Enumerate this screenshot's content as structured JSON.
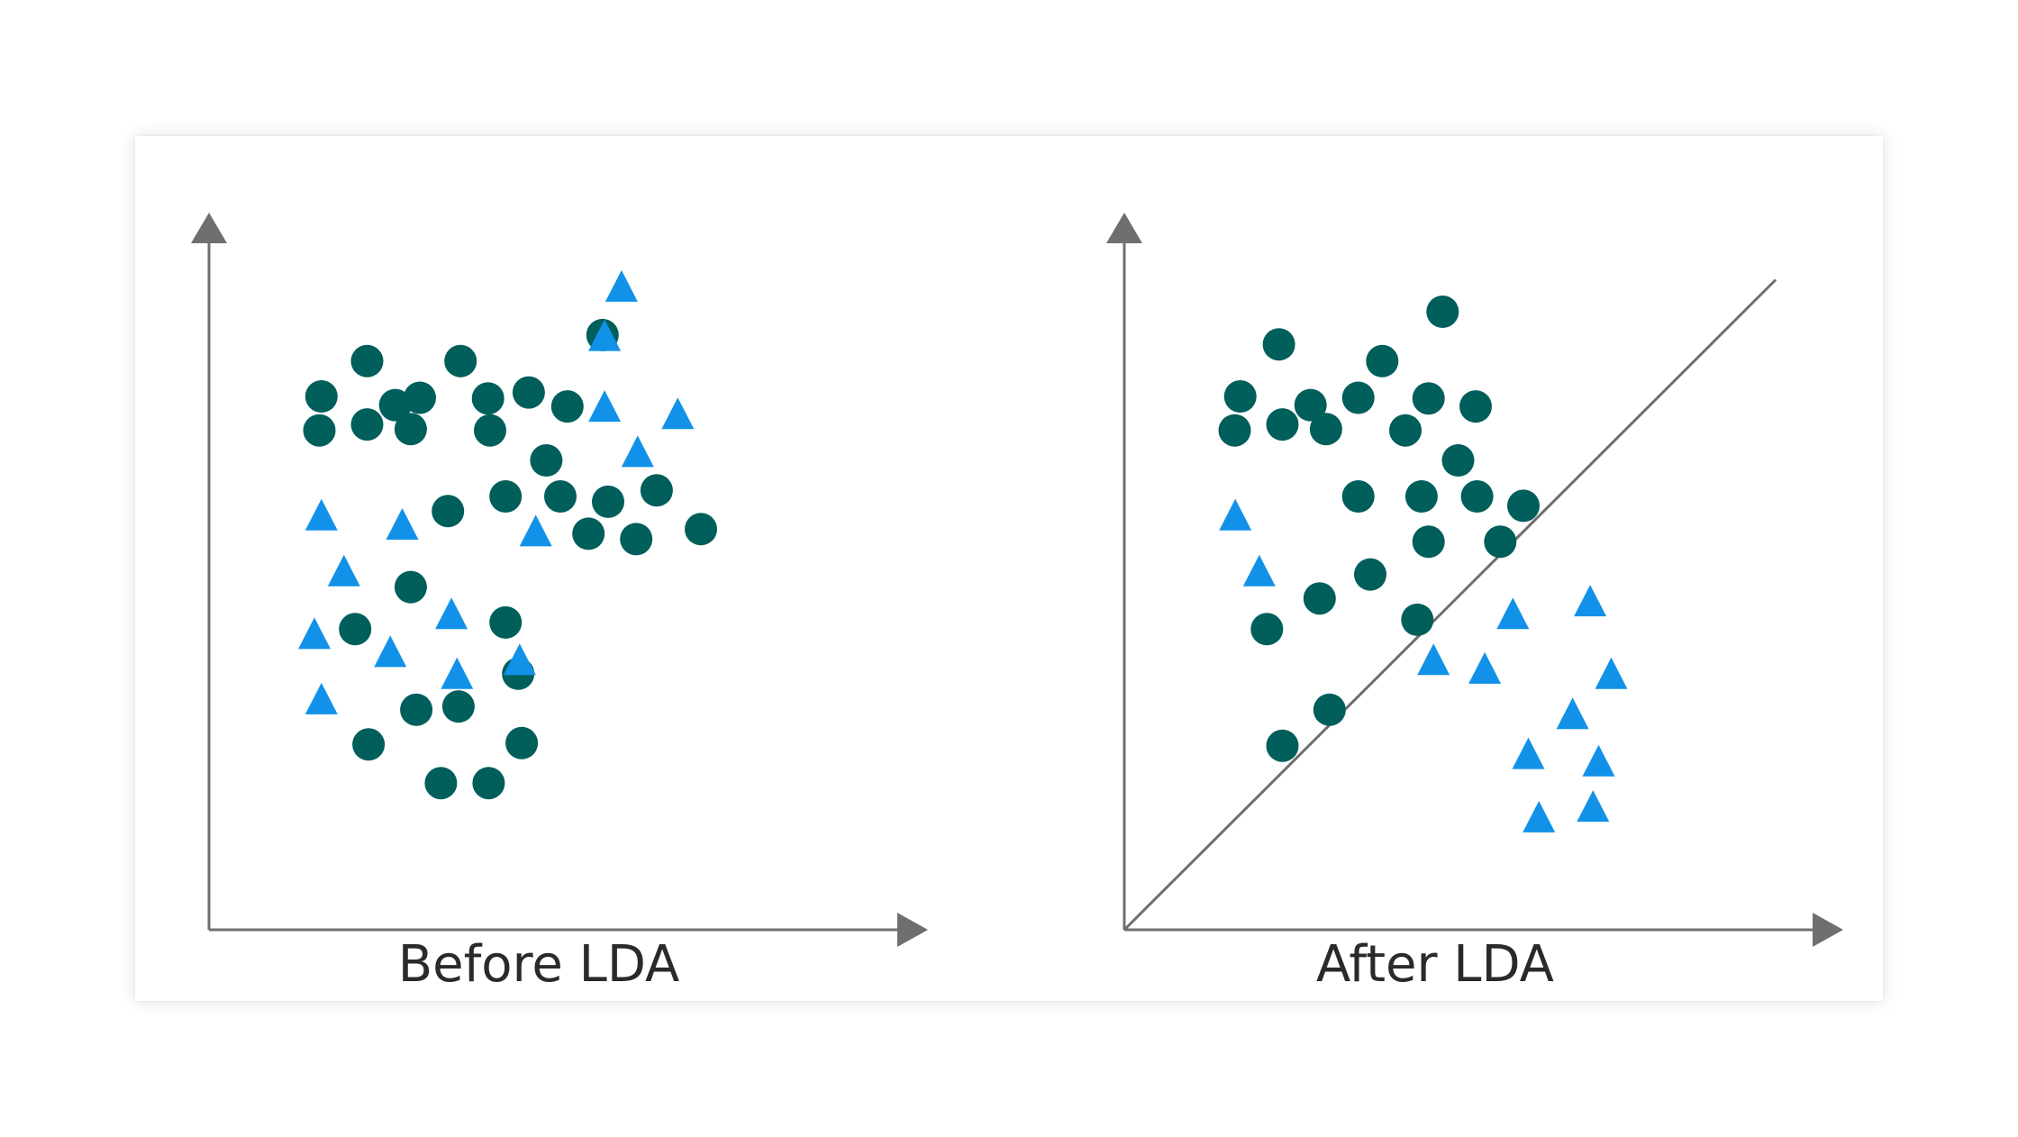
{
  "panels": [
    {
      "caption": "Before LDA",
      "shows_separator": false,
      "circle_points": [
        [
          0.225,
          0.853
        ],
        [
          0.16,
          0.8
        ],
        [
          0.265,
          0.787
        ],
        [
          0.3,
          0.798
        ],
        [
          0.157,
          0.749
        ],
        [
          0.225,
          0.758
        ],
        [
          0.358,
          0.853
        ],
        [
          0.397,
          0.797
        ],
        [
          0.455,
          0.806
        ],
        [
          0.51,
          0.785
        ],
        [
          0.287,
          0.751
        ],
        [
          0.4,
          0.749
        ],
        [
          0.48,
          0.704
        ],
        [
          0.56,
          0.892
        ],
        [
          0.34,
          0.628
        ],
        [
          0.422,
          0.65
        ],
        [
          0.5,
          0.65
        ],
        [
          0.568,
          0.642
        ],
        [
          0.637,
          0.659
        ],
        [
          0.54,
          0.594
        ],
        [
          0.608,
          0.586
        ],
        [
          0.7,
          0.601
        ],
        [
          0.287,
          0.514
        ],
        [
          0.208,
          0.451
        ],
        [
          0.422,
          0.461
        ],
        [
          0.295,
          0.33
        ],
        [
          0.355,
          0.335
        ],
        [
          0.44,
          0.384
        ],
        [
          0.227,
          0.278
        ],
        [
          0.33,
          0.22
        ],
        [
          0.398,
          0.22
        ],
        [
          0.445,
          0.28
        ]
      ],
      "triangle_points": [
        [
          0.587,
          0.961
        ],
        [
          0.563,
          0.887
        ],
        [
          0.563,
          0.781
        ],
        [
          0.667,
          0.77
        ],
        [
          0.61,
          0.713
        ],
        [
          0.16,
          0.618
        ],
        [
          0.275,
          0.604
        ],
        [
          0.465,
          0.594
        ],
        [
          0.192,
          0.534
        ],
        [
          0.345,
          0.47
        ],
        [
          0.15,
          0.44
        ],
        [
          0.258,
          0.413
        ],
        [
          0.353,
          0.38
        ],
        [
          0.442,
          0.401
        ],
        [
          0.16,
          0.342
        ]
      ]
    },
    {
      "caption": "After LDA",
      "shows_separator": true,
      "circle_points": [
        [
          0.453,
          0.927
        ],
        [
          0.165,
          0.8
        ],
        [
          0.265,
          0.787
        ],
        [
          0.333,
          0.798
        ],
        [
          0.157,
          0.749
        ],
        [
          0.225,
          0.758
        ],
        [
          0.367,
          0.853
        ],
        [
          0.433,
          0.797
        ],
        [
          0.5,
          0.785
        ],
        [
          0.287,
          0.751
        ],
        [
          0.4,
          0.749
        ],
        [
          0.475,
          0.704
        ],
        [
          0.22,
          0.878
        ],
        [
          0.333,
          0.65
        ],
        [
          0.423,
          0.65
        ],
        [
          0.502,
          0.65
        ],
        [
          0.568,
          0.636
        ],
        [
          0.433,
          0.582
        ],
        [
          0.535,
          0.582
        ],
        [
          0.35,
          0.533
        ],
        [
          0.278,
          0.497
        ],
        [
          0.417,
          0.465
        ],
        [
          0.203,
          0.451
        ],
        [
          0.292,
          0.33
        ],
        [
          0.225,
          0.276
        ]
      ],
      "triangle_points": [
        [
          0.158,
          0.618
        ],
        [
          0.192,
          0.534
        ],
        [
          0.553,
          0.47
        ],
        [
          0.663,
          0.489
        ],
        [
          0.44,
          0.401
        ],
        [
          0.513,
          0.388
        ],
        [
          0.693,
          0.38
        ],
        [
          0.638,
          0.32
        ],
        [
          0.575,
          0.26
        ],
        [
          0.675,
          0.249
        ],
        [
          0.59,
          0.165
        ],
        [
          0.667,
          0.181
        ]
      ]
    }
  ],
  "colors": {
    "circle": "#005e5b",
    "triangle": "#1192e8",
    "axis": "#6f6f6f",
    "caption": "#2a2a2a"
  }
}
